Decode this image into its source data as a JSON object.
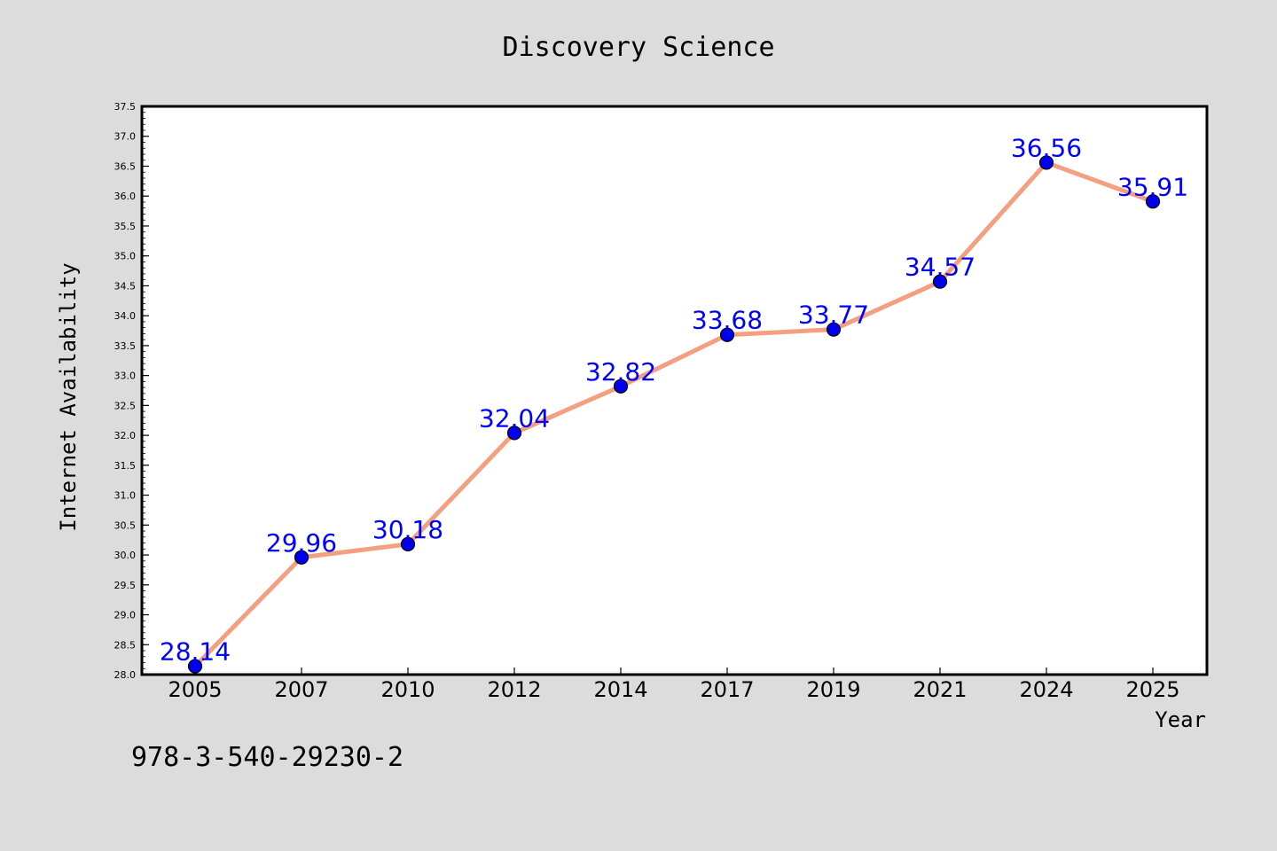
{
  "chart_data": {
    "type": "line",
    "title": "Discovery Science",
    "xlabel": "Year",
    "ylabel": "Internet Availability",
    "categories": [
      "2005",
      "2007",
      "2010",
      "2012",
      "2014",
      "2017",
      "2019",
      "2021",
      "2024",
      "2025"
    ],
    "series": [
      {
        "values": [
          28.14,
          29.96,
          30.18,
          32.04,
          32.82,
          33.68,
          33.77,
          34.57,
          36.56,
          35.91
        ]
      }
    ],
    "data_labels": [
      "28.14",
      "29.96",
      "30.18",
      "32.04",
      "32.82",
      "33.68",
      "33.77",
      "34.57",
      "36.56",
      "35.91"
    ],
    "ylim": [
      28.0,
      37.5
    ],
    "yticks": [
      "28.0",
      "28.5",
      "29.0",
      "29.5",
      "30.0",
      "30.5",
      "31.0",
      "31.5",
      "32.0",
      "32.5",
      "33.0",
      "33.5",
      "34.0",
      "34.5",
      "35.0",
      "35.5",
      "36.0",
      "36.5",
      "37.0",
      "37.5"
    ],
    "grid": false,
    "colors": {
      "line": "#f4a080",
      "marker": "#0000ee",
      "label": "#0000ff"
    }
  },
  "footer_text": "978-3-540-29230-2"
}
